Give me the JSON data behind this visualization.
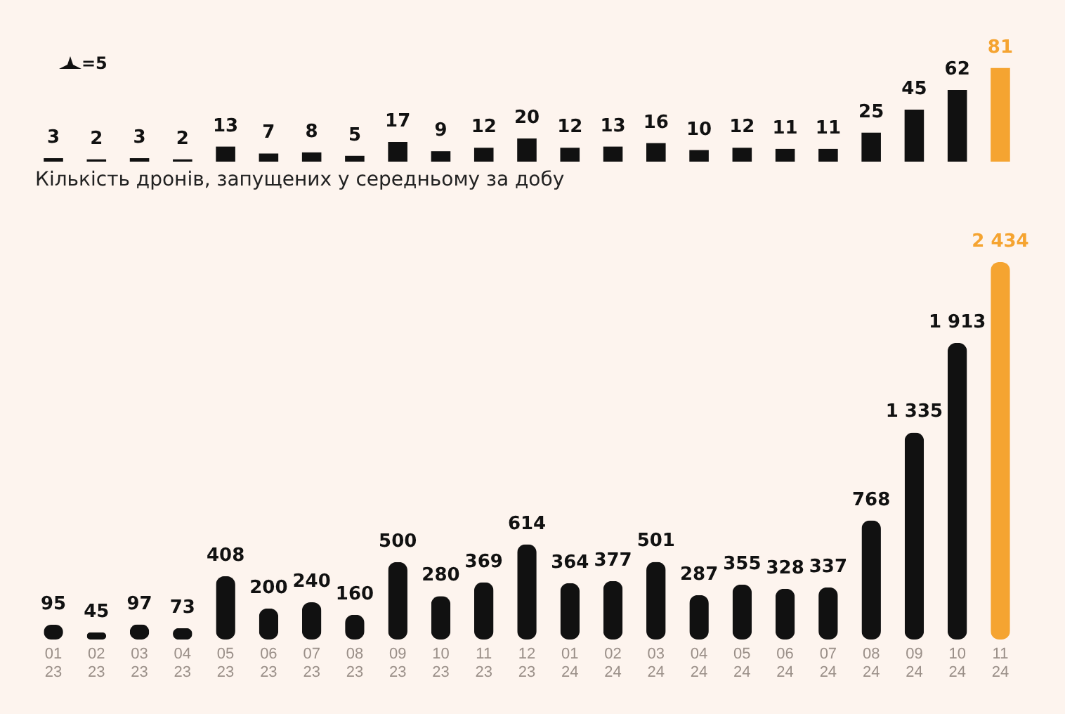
{
  "chart_data": [
    {
      "type": "bar",
      "title": "Кількість дронів, запущених у середньому за добу",
      "annotations": [
        "=5"
      ],
      "tick_labels": false,
      "data_labels": true,
      "categories": [
        "01 23",
        "02 23",
        "03 23",
        "04 23",
        "05 23",
        "06 23",
        "07 23",
        "08 23",
        "09 23",
        "10 23",
        "11 23",
        "12 23",
        "01 24",
        "02 24",
        "03 24",
        "04 24",
        "05 24",
        "06 24",
        "07 24",
        "08 24",
        "09 24",
        "10 24",
        "11 24"
      ],
      "values": [
        3,
        2,
        3,
        2,
        13,
        7,
        8,
        5,
        17,
        9,
        12,
        20,
        12,
        13,
        16,
        10,
        12,
        11,
        11,
        25,
        45,
        62,
        81
      ],
      "colors": [
        "#111111",
        "#111111",
        "#111111",
        "#111111",
        "#111111",
        "#111111",
        "#111111",
        "#111111",
        "#111111",
        "#111111",
        "#111111",
        "#111111",
        "#111111",
        "#111111",
        "#111111",
        "#111111",
        "#111111",
        "#111111",
        "#111111",
        "#111111",
        "#111111",
        "#111111",
        "#f5a431"
      ]
    },
    {
      "type": "bar",
      "tick_labels": "x",
      "data_labels": true,
      "categories": [
        "01 23",
        "02 23",
        "03 23",
        "04 23",
        "05 23",
        "06 23",
        "07 23",
        "08 23",
        "09 23",
        "10 23",
        "11 23",
        "12 23",
        "01 24",
        "02 24",
        "03 24",
        "04 24",
        "05 24",
        "06 24",
        "07 24",
        "08 24",
        "09 24",
        "10 24",
        "11 24"
      ],
      "values": [
        95,
        45,
        97,
        73,
        408,
        200,
        240,
        160,
        500,
        280,
        369,
        614,
        364,
        377,
        501,
        287,
        355,
        328,
        337,
        768,
        1335,
        1913,
        2434
      ],
      "colors": [
        "#111111",
        "#111111",
        "#111111",
        "#111111",
        "#111111",
        "#111111",
        "#111111",
        "#111111",
        "#111111",
        "#111111",
        "#111111",
        "#111111",
        "#111111",
        "#111111",
        "#111111",
        "#111111",
        "#111111",
        "#111111",
        "#111111",
        "#111111",
        "#111111",
        "#111111",
        "#f5a431"
      ]
    }
  ]
}
